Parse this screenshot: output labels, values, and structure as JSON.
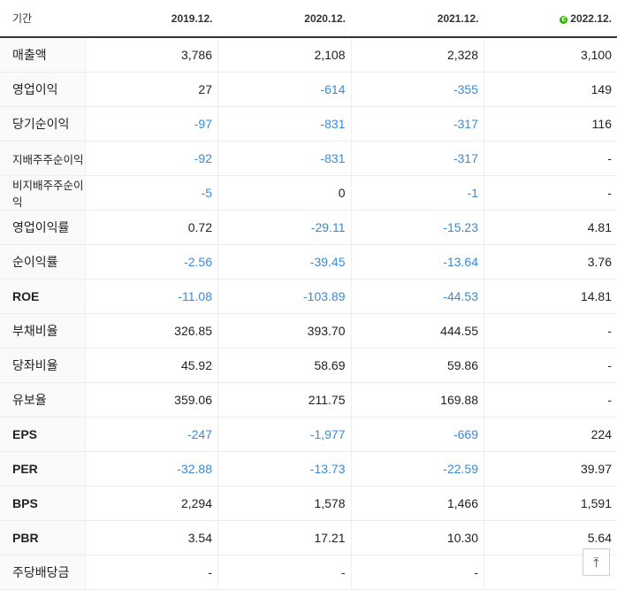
{
  "header": {
    "period_label": "기간",
    "estimate_mark": "E",
    "years": [
      "2019.12.",
      "2020.12.",
      "2021.12.",
      "2022.12."
    ]
  },
  "rows": [
    {
      "label": "매출액",
      "values": [
        "3,786",
        "2,108",
        "2,328",
        "3,100"
      ]
    },
    {
      "label": "영업이익",
      "values": [
        "27",
        "-614",
        "-355",
        "149"
      ]
    },
    {
      "label": "당기순이익",
      "values": [
        "-97",
        "-831",
        "-317",
        "116"
      ]
    },
    {
      "label": "지배주주순이익",
      "values": [
        "-92",
        "-831",
        "-317",
        "-"
      ]
    },
    {
      "label": "비지배주주순이익",
      "values": [
        "-5",
        "0",
        "-1",
        "-"
      ]
    },
    {
      "label": "영업이익률",
      "values": [
        "0.72",
        "-29.11",
        "-15.23",
        "4.81"
      ]
    },
    {
      "label": "순이익률",
      "values": [
        "-2.56",
        "-39.45",
        "-13.64",
        "3.76"
      ]
    },
    {
      "label": "ROE",
      "values": [
        "-11.08",
        "-103.89",
        "-44.53",
        "14.81"
      ]
    },
    {
      "label": "부채비율",
      "values": [
        "326.85",
        "393.70",
        "444.55",
        "-"
      ]
    },
    {
      "label": "당좌비율",
      "values": [
        "45.92",
        "58.69",
        "59.86",
        "-"
      ]
    },
    {
      "label": "유보율",
      "values": [
        "359.06",
        "211.75",
        "169.88",
        "-"
      ]
    },
    {
      "label": "EPS",
      "values": [
        "-247",
        "-1,977",
        "-669",
        "224"
      ]
    },
    {
      "label": "PER",
      "values": [
        "-32.88",
        "-13.73",
        "-22.59",
        "39.97"
      ]
    },
    {
      "label": "BPS",
      "values": [
        "2,294",
        "1,578",
        "1,466",
        "1,591"
      ]
    },
    {
      "label": "PBR",
      "values": [
        "3.54",
        "17.21",
        "10.30",
        "5.64"
      ]
    },
    {
      "label": "주당배당금",
      "values": [
        "-",
        "-",
        "-",
        ""
      ]
    }
  ],
  "scroll_top": {
    "icon": "arrow-up-icon"
  },
  "colors": {
    "negative": "#3a8ad5",
    "estimate_badge": "#2db400"
  }
}
